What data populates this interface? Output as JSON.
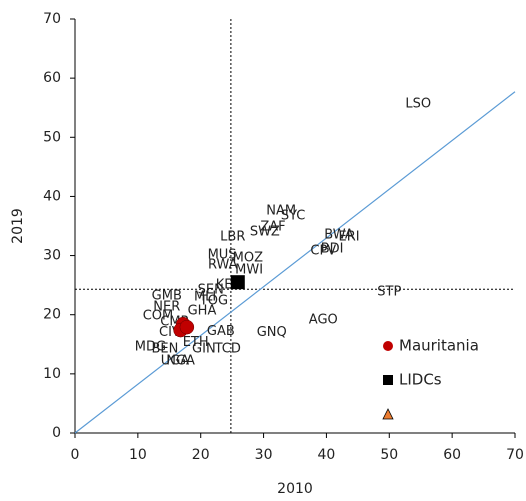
{
  "chart_data": {
    "type": "scatter",
    "xlabel": "2010",
    "ylabel": "2019",
    "xlim": [
      0,
      70
    ],
    "ylim": [
      0,
      70
    ],
    "xticks": [
      0,
      10,
      20,
      30,
      40,
      50,
      60,
      70
    ],
    "yticks": [
      0,
      10,
      20,
      30,
      40,
      50,
      60,
      70
    ],
    "vline": 24.8,
    "hline": 24.3,
    "fit_line": {
      "color": "#5b9bd5",
      "x": [
        0,
        70
      ],
      "y": [
        0,
        57.7
      ]
    },
    "legend": "lower right",
    "series": [
      {
        "name": "Mauritania",
        "color": "#c00000",
        "marker": "circle",
        "x": [
          17.2,
          16.8,
          17.8
        ],
        "y": [
          18.4,
          17.4,
          17.9
        ]
      },
      {
        "name": "LIDCs",
        "color": "#000000",
        "marker": "square",
        "x": [
          25.9
        ],
        "y": [
          25.5
        ]
      }
    ],
    "labels": [
      {
        "text": "LSO",
        "x": 54.6,
        "y": 55.6
      },
      {
        "text": "NAM",
        "x": 32.8,
        "y": 37.5
      },
      {
        "text": "SYC",
        "x": 34.7,
        "y": 36.7
      },
      {
        "text": "ZAF",
        "x": 31.5,
        "y": 34.8
      },
      {
        "text": "SWZ",
        "x": 30.2,
        "y": 34.0
      },
      {
        "text": "LBR",
        "x": 25.1,
        "y": 33.1
      },
      {
        "text": "BWA",
        "x": 42.0,
        "y": 33.5
      },
      {
        "text": "ERI",
        "x": 43.6,
        "y": 33.1
      },
      {
        "text": "CPV",
        "x": 39.5,
        "y": 30.8
      },
      {
        "text": "BDI",
        "x": 40.9,
        "y": 31.1
      },
      {
        "text": "MUS",
        "x": 23.4,
        "y": 30.1
      },
      {
        "text": "MOZ",
        "x": 27.5,
        "y": 29.6
      },
      {
        "text": "RWA",
        "x": 23.5,
        "y": 28.4
      },
      {
        "text": "MWI",
        "x": 27.7,
        "y": 27.6
      },
      {
        "text": "KEN",
        "x": 24.5,
        "y": 25.0
      },
      {
        "text": "SEN",
        "x": 21.6,
        "y": 24.2
      },
      {
        "text": "STP",
        "x": 50.0,
        "y": 23.8
      },
      {
        "text": "GMB",
        "x": 14.6,
        "y": 23.2
      },
      {
        "text": "MLI",
        "x": 20.7,
        "y": 23.0
      },
      {
        "text": "TOG",
        "x": 22.1,
        "y": 22.3
      },
      {
        "text": "NER",
        "x": 14.6,
        "y": 21.3
      },
      {
        "text": "GHA",
        "x": 20.2,
        "y": 20.6
      },
      {
        "text": "COM",
        "x": 13.2,
        "y": 19.8
      },
      {
        "text": "AGO",
        "x": 39.5,
        "y": 19.1
      },
      {
        "text": "CMR",
        "x": 15.9,
        "y": 18.8
      },
      {
        "text": "CIV",
        "x": 15.1,
        "y": 17.0
      },
      {
        "text": "GAB",
        "x": 23.2,
        "y": 17.2
      },
      {
        "text": "GNQ",
        "x": 31.3,
        "y": 17.0
      },
      {
        "text": "ETH",
        "x": 19.2,
        "y": 15.3
      },
      {
        "text": "MDG",
        "x": 12.0,
        "y": 14.5
      },
      {
        "text": "BEN",
        "x": 14.3,
        "y": 14.2
      },
      {
        "text": "GIN",
        "x": 20.5,
        "y": 14.2
      },
      {
        "text": "TCD",
        "x": 24.3,
        "y": 14.2
      },
      {
        "text": "UGA",
        "x": 15.9,
        "y": 12.2
      },
      {
        "text": "NGA",
        "x": 16.8,
        "y": 12.2
      }
    ]
  }
}
